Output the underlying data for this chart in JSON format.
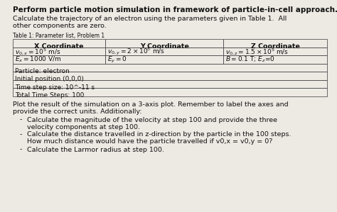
{
  "title": "Perform particle motion simulation in framework of particle-in-cell approach.",
  "para1_line1": "Calculate the trajectory of an electron using the parameters given in Table 1.  All",
  "para1_line2": "other components are zero.",
  "table_title": "Table 1: Parameter list, Problem 1",
  "col_headers": [
    "X Coordinate",
    "Y Coordinate",
    "Z Coordinate"
  ],
  "row1_plain": [
    "v0,x = 10^5 m/s",
    "v0,y = 2 x 10^5 m/s",
    "v0,z = 1.5 x 10^5 m/s"
  ],
  "row2_plain": [
    "Ex = 1000 V/m",
    "Ey = 0",
    "B = 0.1 T; Ez=0"
  ],
  "row3": "Particle: electron",
  "row4": "Initial position (0,0,0)",
  "row5": "Time step size: 10^-11 s",
  "row6": "Total Time Steps: 100",
  "para2_line1": "Plot the result of the simulation on a 3-axis plot. Remember to label the axes and",
  "para2_line2": "provide the correct units. Additionally:",
  "b1_line1": "Calculate the magnitude of the velocity at step 100 and provide the three",
  "b1_line2": "velocity components at step 100.",
  "b2_line1": "Calculate the distance travelled in z-direction by the particle in the 100 steps.",
  "b2_line2": "How much distance would have the particle travelled if v0,x = v0,y = 0?",
  "b3_line1": "Calculate the Larmor radius at step 100.",
  "bg_color": "#ede9e3",
  "text_color": "#111111",
  "table_line_color": "#555555",
  "fontsize_title": 7.5,
  "fontsize_body": 6.8,
  "fontsize_table_hdr": 6.8,
  "fontsize_table_cell": 6.5,
  "fontsize_table_title": 5.5
}
